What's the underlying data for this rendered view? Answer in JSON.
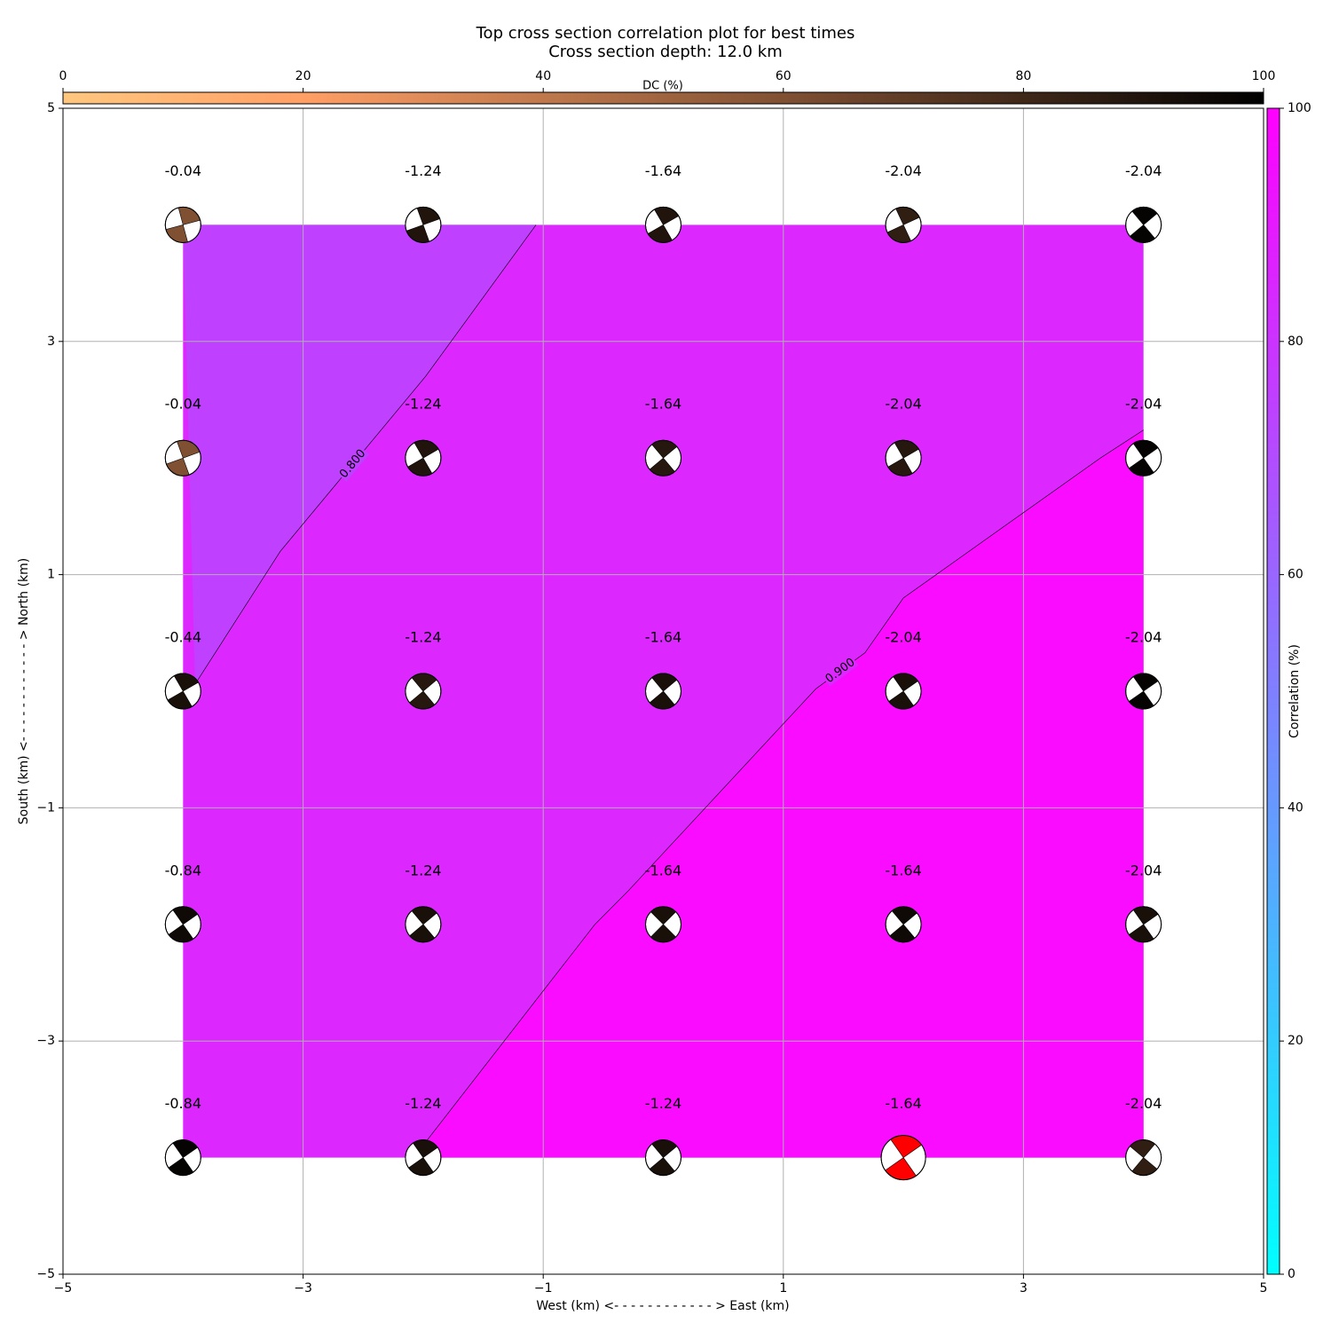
{
  "chart_data": {
    "type": "contour",
    "title": "Top cross section correlation plot for best times",
    "subtitle": "Cross section depth: 12.0 km",
    "x_label": "West (km) <- - - - - - - - - - - - > East (km)",
    "y_label": "South (km) <- - - - - - - - - - - - > North (km)",
    "xlim": [
      -5,
      5
    ],
    "ylim": [
      -5,
      5
    ],
    "xticks": [
      {
        "value": -5,
        "label": "−5"
      },
      {
        "value": -3,
        "label": "−3"
      },
      {
        "value": -1,
        "label": "−1"
      },
      1,
      3,
      5
    ],
    "yticks": [
      {
        "value": -5,
        "label": "−5"
      },
      {
        "value": -3,
        "label": "−3"
      },
      {
        "value": -1,
        "label": "−1"
      },
      1,
      3,
      5
    ],
    "grid": true,
    "region": {
      "xlim": [
        -4,
        4
      ],
      "ylim": [
        -4,
        4
      ]
    },
    "fill_colors": [
      "#bf40ff",
      "#dc28ff",
      "#f90cff"
    ],
    "contours": [
      {
        "level": {
          "value": 0.8,
          "label": "0.800"
        },
        "x": [
          -3.9,
          -3.19,
          -1.98,
          -1.06
        ],
        "y": [
          0.06,
          1.2,
          2.7,
          4
        ]
      },
      {
        "level": {
          "value": 0.9,
          "label": "0.900"
        },
        "x": [
          -2.08,
          -0.57,
          -0.29,
          1.27,
          1.68,
          2.0,
          3.64,
          4.0
        ],
        "y": [
          -4,
          -2.0,
          -1.71,
          0.02,
          0.33,
          0.8,
          2.0,
          2.24
        ]
      }
    ],
    "correlation_colorbar": {
      "label": "Correlation (%)",
      "lim": [
        0,
        100
      ],
      "ticks": [
        0,
        20,
        40,
        60,
        80,
        100
      ],
      "colors": [
        "#00ffff",
        "#ff00ff"
      ]
    },
    "dc_colorbar": {
      "label": "DC (%)",
      "lim": [
        0,
        100
      ],
      "ticks": [
        0,
        20,
        40,
        60,
        80,
        100
      ],
      "colormap": "copper_r"
    },
    "points": [
      {
        "x": -4,
        "y": 4,
        "label": -0.04,
        "dc": 60,
        "rotation": -15
      },
      {
        "x": -2,
        "y": 4,
        "label": -1.24,
        "dc": 90,
        "rotation": -20
      },
      {
        "x": 0,
        "y": 4,
        "label": -1.64,
        "dc": 90,
        "rotation": -30
      },
      {
        "x": 2,
        "y": 4,
        "label": -2.04,
        "dc": 85,
        "rotation": -25
      },
      {
        "x": 4,
        "y": 4,
        "label": -2.04,
        "dc": 98,
        "rotation": -40
      },
      {
        "x": -4,
        "y": 2,
        "label": -0.04,
        "dc": 60,
        "rotation": -20
      },
      {
        "x": -2,
        "y": 2,
        "label": -1.24,
        "dc": 90,
        "rotation": -30
      },
      {
        "x": 0,
        "y": 2,
        "label": -1.64,
        "dc": 88,
        "rotation": -40
      },
      {
        "x": 2,
        "y": 2,
        "label": -2.04,
        "dc": 88,
        "rotation": -30
      },
      {
        "x": 4,
        "y": 2,
        "label": -2.04,
        "dc": 98,
        "rotation": -35
      },
      {
        "x": -4,
        "y": 0,
        "label": -0.44,
        "dc": 92,
        "rotation": -30
      },
      {
        "x": -2,
        "y": 0,
        "label": -1.24,
        "dc": 88,
        "rotation": -40
      },
      {
        "x": 0,
        "y": 0,
        "label": -1.64,
        "dc": 92,
        "rotation": -40
      },
      {
        "x": 2,
        "y": 0,
        "label": -2.04,
        "dc": 92,
        "rotation": -35
      },
      {
        "x": 4,
        "y": 0,
        "label": -2.04,
        "dc": 98,
        "rotation": -35
      },
      {
        "x": -4,
        "y": -2,
        "label": -0.84,
        "dc": 95,
        "rotation": -35
      },
      {
        "x": -2,
        "y": -2,
        "label": -1.24,
        "dc": 92,
        "rotation": -40
      },
      {
        "x": 0,
        "y": -2,
        "label": -1.64,
        "dc": 92,
        "rotation": -45
      },
      {
        "x": 2,
        "y": -2,
        "label": -1.64,
        "dc": 95,
        "rotation": -40
      },
      {
        "x": 4,
        "y": -2,
        "label": -2.04,
        "dc": 92,
        "rotation": -35
      },
      {
        "x": -4,
        "y": -4,
        "label": -0.84,
        "dc": 98,
        "rotation": -35
      },
      {
        "x": -2,
        "y": -4,
        "label": -1.24,
        "dc": 92,
        "rotation": -35
      },
      {
        "x": 0,
        "y": -4,
        "label": -1.24,
        "dc": 92,
        "rotation": -40
      },
      {
        "x": 2,
        "y": -4,
        "label": -1.64,
        "dc": 90,
        "rotation": -35,
        "color": "#ff0000"
      },
      {
        "x": 4,
        "y": -4,
        "label": -2.04,
        "dc": 85,
        "rotation": -50
      }
    ]
  }
}
